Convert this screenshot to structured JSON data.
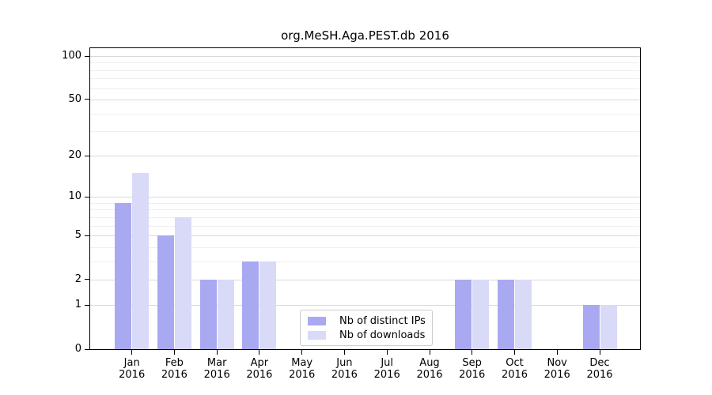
{
  "chart_data": {
    "type": "bar",
    "title": "org.MeSH.Aga.PEST.db 2016",
    "categories": [
      "Jan 2016",
      "Feb 2016",
      "Mar 2016",
      "Apr 2016",
      "May 2016",
      "Jun 2016",
      "Jul 2016",
      "Aug 2016",
      "Sep 2016",
      "Oct 2016",
      "Nov 2016",
      "Dec 2016"
    ],
    "series": [
      {
        "name": "Nb of distinct IPs",
        "color": "#a9a9f2",
        "values": [
          9,
          5,
          2,
          3,
          0,
          0,
          0,
          0,
          2,
          2,
          0,
          1
        ]
      },
      {
        "name": "Nb of downloads",
        "color": "#d9d9f8",
        "values": [
          15,
          7,
          2,
          3,
          0,
          0,
          0,
          0,
          2,
          2,
          0,
          1
        ]
      }
    ],
    "xlabel": "",
    "ylabel": "",
    "yscale": "log1p",
    "ylim": [
      0,
      110
    ],
    "ytick_labels": [
      0,
      1,
      2,
      5,
      10,
      20,
      50,
      100
    ],
    "minor_gridlines": [
      3,
      4,
      6,
      7,
      8,
      9,
      30,
      40,
      60,
      70,
      80,
      90
    ],
    "grid": "horizontal",
    "legend_position": "lower center",
    "colors": {
      "major_grid": "#d9d9d9",
      "minor_grid": "#efefef",
      "axis": "#000000",
      "background": "#ffffff"
    }
  }
}
